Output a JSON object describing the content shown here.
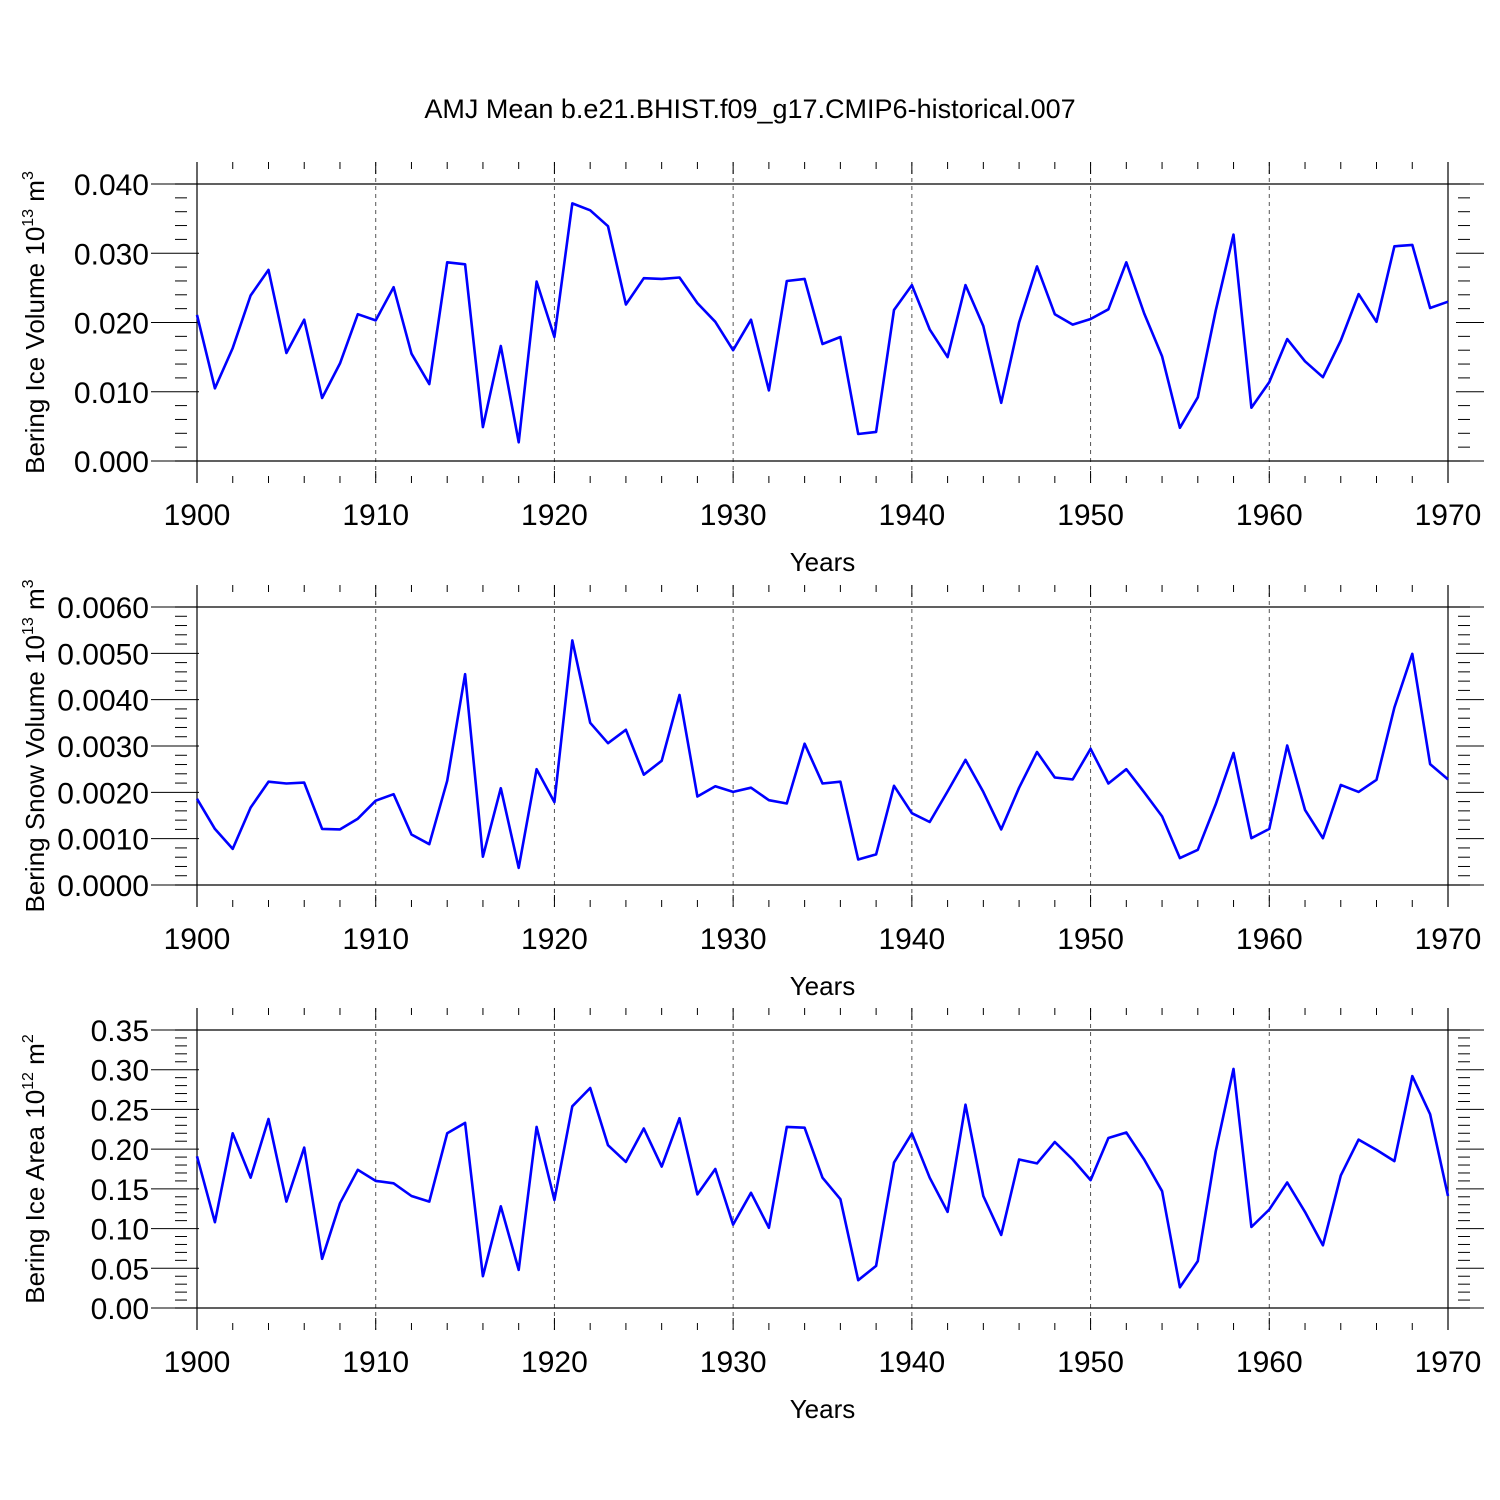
{
  "title": "AMJ Mean b.e21.BHIST.f09_g17.CMIP6-historical.007",
  "chart_data": [
    {
      "type": "line",
      "name": "bering-ice-volume",
      "ylabel_main": "Bering Ice Volume 10",
      "ylabel_exp": "13",
      "ylabel_unit": " m",
      "ylabel_unit_exp": "3",
      "xlabel": "Years",
      "xlim": [
        1900,
        1970
      ],
      "ylim": [
        0.0,
        0.04
      ],
      "ytick_vals": [
        0.0,
        0.01,
        0.02,
        0.03,
        0.04
      ],
      "ytick_labels": [
        "0.000",
        "0.010",
        "0.020",
        "0.030",
        "0.040"
      ],
      "xtick_vals": [
        1900,
        1910,
        1920,
        1930,
        1940,
        1950,
        1960,
        1970
      ],
      "xtick_labels": [
        "1900",
        "1910",
        "1920",
        "1930",
        "1940",
        "1950",
        "1960",
        "1970"
      ],
      "color": "#0000ff",
      "years": [
        1900,
        1901,
        1902,
        1903,
        1904,
        1905,
        1906,
        1907,
        1908,
        1909,
        1910,
        1911,
        1912,
        1913,
        1914,
        1915,
        1916,
        1917,
        1918,
        1919,
        1920,
        1921,
        1922,
        1923,
        1924,
        1925,
        1926,
        1927,
        1928,
        1929,
        1930,
        1931,
        1932,
        1933,
        1934,
        1935,
        1936,
        1937,
        1938,
        1939,
        1940,
        1941,
        1942,
        1943,
        1944,
        1945,
        1946,
        1947,
        1948,
        1949,
        1950,
        1951,
        1952,
        1953,
        1954,
        1955,
        1956,
        1957,
        1958,
        1959,
        1960,
        1961,
        1962,
        1963,
        1964,
        1965,
        1966,
        1967,
        1968,
        1969,
        1970
      ],
      "values": [
        0.0211,
        0.0105,
        0.0163,
        0.0239,
        0.0276,
        0.0156,
        0.0204,
        0.0091,
        0.0141,
        0.0212,
        0.0203,
        0.0251,
        0.0155,
        0.0111,
        0.0287,
        0.0284,
        0.0049,
        0.0166,
        0.0027,
        0.0259,
        0.0179,
        0.0372,
        0.0362,
        0.0339,
        0.0226,
        0.0264,
        0.0263,
        0.0265,
        0.0228,
        0.0201,
        0.016,
        0.0204,
        0.0102,
        0.026,
        0.0263,
        0.0169,
        0.0179,
        0.0039,
        0.0042,
        0.0218,
        0.0254,
        0.019,
        0.015,
        0.0254,
        0.0195,
        0.0084,
        0.02,
        0.0281,
        0.0212,
        0.0197,
        0.0205,
        0.0219,
        0.0287,
        0.0213,
        0.0151,
        0.0048,
        0.0092,
        0.0217,
        0.0327,
        0.0077,
        0.0114,
        0.0176,
        0.0144,
        0.0121,
        0.0174,
        0.0241,
        0.0201,
        0.031,
        0.0312,
        0.0221,
        0.023
      ]
    },
    {
      "type": "line",
      "name": "bering-snow-volume",
      "ylabel_main": "Bering Snow Volume 10",
      "ylabel_exp": "13",
      "ylabel_unit": " m",
      "ylabel_unit_exp": "3",
      "xlabel": "Years",
      "xlim": [
        1900,
        1970
      ],
      "ylim": [
        0.0,
        0.006
      ],
      "ytick_vals": [
        0.0,
        0.001,
        0.002,
        0.003,
        0.004,
        0.005,
        0.006
      ],
      "ytick_labels": [
        "0.0000",
        "0.0010",
        "0.0020",
        "0.0030",
        "0.0040",
        "0.0050",
        "0.0060"
      ],
      "xtick_vals": [
        1900,
        1910,
        1920,
        1930,
        1940,
        1950,
        1960,
        1970
      ],
      "xtick_labels": [
        "1900",
        "1910",
        "1920",
        "1930",
        "1940",
        "1950",
        "1960",
        "1970"
      ],
      "color": "#0000ff",
      "years": [
        1900,
        1901,
        1902,
        1903,
        1904,
        1905,
        1906,
        1907,
        1908,
        1909,
        1910,
        1911,
        1912,
        1913,
        1914,
        1915,
        1916,
        1917,
        1918,
        1919,
        1920,
        1921,
        1922,
        1923,
        1924,
        1925,
        1926,
        1927,
        1928,
        1929,
        1930,
        1931,
        1932,
        1933,
        1934,
        1935,
        1936,
        1937,
        1938,
        1939,
        1940,
        1941,
        1942,
        1943,
        1944,
        1945,
        1946,
        1947,
        1948,
        1949,
        1950,
        1951,
        1952,
        1953,
        1954,
        1955,
        1956,
        1957,
        1958,
        1959,
        1960,
        1961,
        1962,
        1963,
        1964,
        1965,
        1966,
        1967,
        1968,
        1969,
        1970
      ],
      "values": [
        0.00186,
        0.00121,
        0.00078,
        0.00167,
        0.00223,
        0.00219,
        0.00221,
        0.00121,
        0.0012,
        0.00143,
        0.00182,
        0.00196,
        0.00109,
        0.00088,
        0.00225,
        0.00455,
        0.00061,
        0.00209,
        0.00037,
        0.0025,
        0.00179,
        0.00528,
        0.0035,
        0.00306,
        0.00335,
        0.00238,
        0.00268,
        0.0041,
        0.00191,
        0.00213,
        0.00201,
        0.0021,
        0.00183,
        0.00176,
        0.00305,
        0.00219,
        0.00223,
        0.00055,
        0.00066,
        0.00214,
        0.00155,
        0.00136,
        0.00202,
        0.0027,
        0.00201,
        0.0012,
        0.0021,
        0.00287,
        0.00232,
        0.00228,
        0.00294,
        0.00219,
        0.0025,
        0.002,
        0.00148,
        0.00058,
        0.00076,
        0.00174,
        0.00285,
        0.00101,
        0.00121,
        0.00301,
        0.00162,
        0.00101,
        0.00216,
        0.00201,
        0.00227,
        0.00383,
        0.00499,
        0.00261,
        0.00228
      ]
    },
    {
      "type": "line",
      "name": "bering-ice-area",
      "ylabel_main": "Bering Ice Area 10",
      "ylabel_exp": "12",
      "ylabel_unit": " m",
      "ylabel_unit_exp": "2",
      "xlabel": "Years",
      "xlim": [
        1900,
        1970
      ],
      "ylim": [
        0.0,
        0.35
      ],
      "ytick_vals": [
        0.0,
        0.05,
        0.1,
        0.15,
        0.2,
        0.25,
        0.3,
        0.35
      ],
      "ytick_labels": [
        "0.00",
        "0.05",
        "0.10",
        "0.15",
        "0.20",
        "0.25",
        "0.30",
        "0.35"
      ],
      "xtick_vals": [
        1900,
        1910,
        1920,
        1930,
        1940,
        1950,
        1960,
        1970
      ],
      "xtick_labels": [
        "1900",
        "1910",
        "1920",
        "1930",
        "1940",
        "1950",
        "1960",
        "1970"
      ],
      "color": "#0000ff",
      "years": [
        1900,
        1901,
        1902,
        1903,
        1904,
        1905,
        1906,
        1907,
        1908,
        1909,
        1910,
        1911,
        1912,
        1913,
        1914,
        1915,
        1916,
        1917,
        1918,
        1919,
        1920,
        1921,
        1922,
        1923,
        1924,
        1925,
        1926,
        1927,
        1928,
        1929,
        1930,
        1931,
        1932,
        1933,
        1934,
        1935,
        1936,
        1937,
        1938,
        1939,
        1940,
        1941,
        1942,
        1943,
        1944,
        1945,
        1946,
        1947,
        1948,
        1949,
        1950,
        1951,
        1952,
        1953,
        1954,
        1955,
        1956,
        1957,
        1958,
        1959,
        1960,
        1961,
        1962,
        1963,
        1964,
        1965,
        1966,
        1967,
        1968,
        1969,
        1970
      ],
      "values": [
        0.191,
        0.108,
        0.22,
        0.164,
        0.238,
        0.134,
        0.202,
        0.062,
        0.132,
        0.174,
        0.16,
        0.157,
        0.141,
        0.134,
        0.22,
        0.233,
        0.04,
        0.128,
        0.048,
        0.228,
        0.136,
        0.254,
        0.277,
        0.205,
        0.184,
        0.226,
        0.178,
        0.239,
        0.143,
        0.175,
        0.105,
        0.145,
        0.101,
        0.228,
        0.227,
        0.164,
        0.137,
        0.035,
        0.053,
        0.183,
        0.22,
        0.164,
        0.121,
        0.256,
        0.141,
        0.092,
        0.187,
        0.182,
        0.209,
        0.187,
        0.161,
        0.214,
        0.221,
        0.187,
        0.147,
        0.026,
        0.059,
        0.197,
        0.301,
        0.102,
        0.124,
        0.158,
        0.121,
        0.079,
        0.167,
        0.212,
        0.199,
        0.185,
        0.292,
        0.244,
        0.141
      ]
    }
  ]
}
